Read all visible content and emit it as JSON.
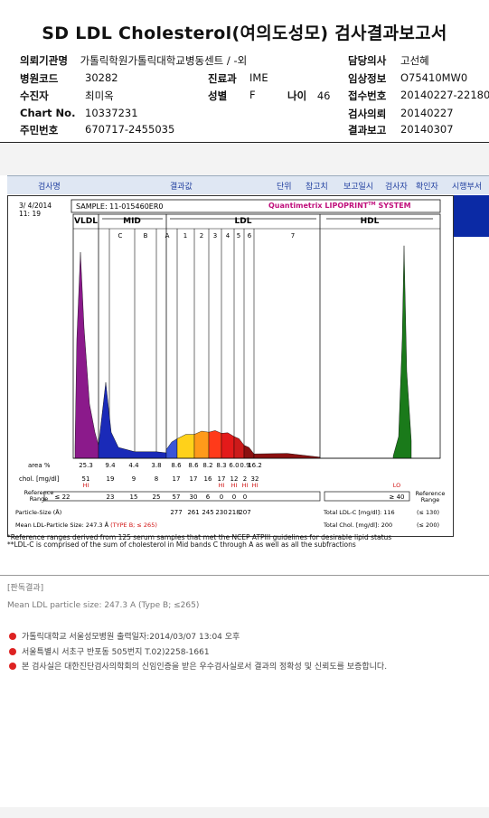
{
  "title": "SD LDL Cholesterol(여의도성모) 검사결과보고서",
  "info": {
    "inst_label": "의뢰기관명",
    "inst_value": "가톨릭학원가톨릭대학교병동센트 / -외",
    "code_label": "병원코드",
    "code_value": "30282",
    "patient_label": "수진자",
    "patient_value": "최미옥",
    "chart_label": "Chart No.",
    "chart_value": "10337231",
    "id_label": "주민번호",
    "id_value": "670717-2455035",
    "dept_label": "진료과",
    "dept_value": "IME",
    "sex_label": "성별",
    "sex_value": "F",
    "age_label": "나이",
    "age_value": "46",
    "doctor_label": "담당의사",
    "doctor_value": "고선혜",
    "clinical_label": "임상정보",
    "clinical_value": "O75410MW0",
    "receipt_label": "접수번호",
    "receipt_value": "20140227-22180",
    "request_label": "검사의뢰",
    "request_value": "20140227",
    "report_label": "결과보고",
    "report_value": "20140307"
  },
  "tabs": [
    "검사명",
    "결과값",
    "단위",
    "참고치",
    "보고일시",
    "검사자",
    "확인자",
    "시행부서"
  ],
  "chart_data": {
    "type": "area",
    "date": "3/ 4/2014",
    "time": "11: 19",
    "sample": "SAMPLE:  11-015460ER0",
    "brand": "Quantimetrix LIPOPRINT",
    "brand_sup": "TM",
    "brand_tail": " SYSTEM",
    "groups": [
      "VLDL",
      "MID",
      "LDL",
      "HDL"
    ],
    "bands": [
      "C",
      "B",
      "A",
      "1",
      "2",
      "3",
      "4",
      "5",
      "6",
      "7"
    ],
    "area_label": "area %",
    "area_values": [
      "25.3",
      "9.4",
      "4.4",
      "3.8",
      "8.6",
      "8.6",
      "8.2",
      "8.3",
      "6.0",
      "0.9",
      "16.2"
    ],
    "chol_label": "chol. [mg/dl]",
    "chol_values": [
      "51",
      "19",
      "9",
      "8",
      "17",
      "17",
      "16",
      "17",
      "12",
      "2",
      "32"
    ],
    "flags": [
      "HI",
      "HI",
      "HI",
      "HI",
      "HI",
      "LO"
    ],
    "ref_label": "Reference Range",
    "ref_values": [
      "≤ 22",
      "23",
      "15",
      "25",
      "57",
      "30",
      "6",
      "0",
      "0",
      "0"
    ],
    "hdl_ref": "≥ 40",
    "ref_right": "Reference Range",
    "particle_label": "Particle-Size (Å)",
    "particle_values": [
      "277",
      "261",
      "245",
      "230",
      "218",
      "207"
    ],
    "mean_label": "Mean LDL-Particle Size:",
    "mean_value": "247.3 Å",
    "mean_type": "(TYPE B; ≤ 265)",
    "total_ldl": "Total LDL-C [mg/dl]:  116",
    "total_ldl_ref": "(≤ 130)",
    "total_chol": "Total Chol. [mg/dl]:  200",
    "total_chol_ref": "(≤ 200)",
    "series": [
      {
        "name": "VLDL",
        "values": [
          0.55,
          0.95,
          0.6,
          0.25,
          0.12,
          0.06
        ]
      },
      {
        "name": "MID",
        "values": [
          0.35,
          0.12,
          0.05,
          0.03,
          0.03,
          0.025
        ]
      },
      {
        "name": "LDL",
        "values": [
          0.04,
          0.09,
          0.1,
          0.11,
          0.12,
          0.1,
          0.06,
          0.02,
          0.01
        ]
      },
      {
        "name": "HDL",
        "values": [
          0.1,
          0.55,
          0.98,
          0.4,
          0.08
        ]
      }
    ],
    "colors": [
      "#8b1a8b",
      "#5a1a8b",
      "#1a2ab8",
      "#1a3fd0",
      "#3a55d8",
      "#ffd11a",
      "#ff9a1a",
      "#ff3a1a",
      "#e31a1a",
      "#cc1a1a",
      "#8b1010",
      "#1a7a1a"
    ]
  },
  "footnotes": [
    "*Reference ranges derived from 125 serum samples that met the NCEP ATPIII guidelines for desirable lipid status",
    "**LDL-C is comprised of the sum of cholesterol in Mid bands C through A as well as all the subfractions"
  ],
  "result_header": "[판독결과]",
  "result_text": "Mean LDL particle size: 247.3 A (Type B; ≤265)",
  "lines": [
    "가톨릭대학교 서울성모병원        출력일자:2014/03/07 13:04 오후",
    "서울특별시 서초구 반포동 505번지 T.02)2258-1661",
    "본 검사실은 대한진단검사의학회의 신임인증을 받은 우수검사실로서 결과의 정확성 및 신뢰도를 보증합니다."
  ]
}
